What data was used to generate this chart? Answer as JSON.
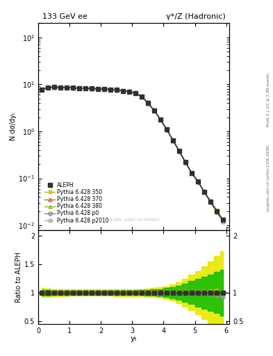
{
  "title_left": "133 GeV ee",
  "title_right": "γ*/Z (Hadronic)",
  "ylabel_main": "N dσ/dyₜ",
  "ylabel_ratio": "Ratio to ALEPH",
  "xlabel": "yₜ",
  "watermark": "ALEPH_2004_S5765862",
  "right_label_top": "Rivet 3.1.10; ≥ 3.3M events",
  "right_label_bot": "mcplots.cern.ch [arXiv:1306.3436]",
  "x": [
    0.1,
    0.3,
    0.5,
    0.7,
    0.9,
    1.1,
    1.3,
    1.5,
    1.7,
    1.9,
    2.1,
    2.3,
    2.5,
    2.7,
    2.9,
    3.1,
    3.3,
    3.5,
    3.7,
    3.9,
    4.1,
    4.3,
    4.5,
    4.7,
    4.9,
    5.1,
    5.3,
    5.5,
    5.7,
    5.9
  ],
  "y_aleph": [
    7.8,
    8.5,
    8.7,
    8.6,
    8.5,
    8.4,
    8.3,
    8.2,
    8.1,
    8.0,
    7.9,
    7.8,
    7.6,
    7.3,
    7.0,
    6.5,
    5.5,
    4.0,
    2.8,
    1.8,
    1.1,
    0.65,
    0.38,
    0.22,
    0.13,
    0.085,
    0.052,
    0.032,
    0.02,
    0.013
  ],
  "y_350": [
    7.9,
    8.6,
    8.8,
    8.7,
    8.6,
    8.5,
    8.4,
    8.3,
    8.2,
    8.1,
    8.0,
    7.9,
    7.7,
    7.4,
    7.1,
    6.6,
    5.6,
    4.1,
    2.85,
    1.82,
    1.12,
    0.66,
    0.39,
    0.225,
    0.132,
    0.087,
    0.053,
    0.033,
    0.021,
    0.013
  ],
  "y_370": [
    7.8,
    8.5,
    8.7,
    8.6,
    8.5,
    8.4,
    8.3,
    8.2,
    8.1,
    8.0,
    7.9,
    7.8,
    7.6,
    7.3,
    7.0,
    6.5,
    5.5,
    4.0,
    2.8,
    1.8,
    1.1,
    0.65,
    0.38,
    0.22,
    0.13,
    0.085,
    0.052,
    0.032,
    0.02,
    0.013
  ],
  "y_380": [
    7.8,
    8.5,
    8.7,
    8.6,
    8.5,
    8.4,
    8.3,
    8.2,
    8.1,
    8.0,
    7.9,
    7.8,
    7.6,
    7.3,
    7.0,
    6.5,
    5.5,
    4.0,
    2.8,
    1.8,
    1.1,
    0.65,
    0.38,
    0.22,
    0.13,
    0.085,
    0.052,
    0.032,
    0.02,
    0.013
  ],
  "y_p0": [
    7.75,
    8.45,
    8.65,
    8.55,
    8.45,
    8.35,
    8.25,
    8.15,
    8.05,
    7.95,
    7.85,
    7.75,
    7.55,
    7.25,
    6.95,
    6.45,
    5.45,
    3.95,
    2.75,
    1.75,
    1.08,
    0.64,
    0.375,
    0.218,
    0.128,
    0.084,
    0.051,
    0.031,
    0.019,
    0.012
  ],
  "y_p2010": [
    7.75,
    8.45,
    8.65,
    8.55,
    8.45,
    8.35,
    8.25,
    8.15,
    8.05,
    7.95,
    7.85,
    7.75,
    7.55,
    7.25,
    6.95,
    6.45,
    5.45,
    3.95,
    2.75,
    1.75,
    1.08,
    0.64,
    0.375,
    0.218,
    0.128,
    0.084,
    0.051,
    0.031,
    0.019,
    0.012
  ],
  "ratio_350": [
    1.01,
    1.01,
    1.01,
    1.01,
    1.01,
    1.01,
    1.01,
    1.01,
    1.01,
    1.01,
    1.01,
    1.01,
    1.01,
    1.01,
    1.01,
    1.01,
    1.02,
    1.02,
    1.02,
    1.01,
    1.02,
    1.015,
    1.02,
    1.02,
    1.015,
    1.024,
    1.019,
    1.031,
    1.05,
    1.0
  ],
  "ratio_370": [
    1.0,
    1.0,
    1.0,
    1.0,
    1.0,
    1.0,
    1.0,
    1.0,
    1.0,
    1.0,
    1.0,
    1.0,
    1.0,
    1.0,
    1.0,
    1.0,
    1.0,
    1.0,
    1.0,
    1.0,
    1.0,
    1.0,
    1.0,
    1.0,
    1.0,
    1.0,
    1.0,
    1.0,
    1.0,
    1.0
  ],
  "ratio_380": [
    1.0,
    1.0,
    1.0,
    1.0,
    1.0,
    1.0,
    1.0,
    1.0,
    1.0,
    1.0,
    1.0,
    1.0,
    1.0,
    1.0,
    1.0,
    1.0,
    1.0,
    1.0,
    1.0,
    1.0,
    1.0,
    1.0,
    1.0,
    1.0,
    1.0,
    1.0,
    1.0,
    1.0,
    1.0,
    1.0
  ],
  "ratio_p0": [
    0.99,
    0.99,
    0.99,
    0.99,
    0.99,
    0.99,
    0.99,
    0.99,
    0.99,
    0.99,
    0.99,
    0.99,
    0.99,
    0.99,
    0.99,
    0.99,
    0.99,
    0.988,
    0.982,
    0.972,
    0.982,
    0.985,
    0.987,
    0.991,
    0.985,
    0.988,
    0.981,
    0.969,
    0.95,
    0.923
  ],
  "ratio_p2010": [
    0.99,
    0.99,
    0.99,
    0.99,
    0.99,
    0.99,
    0.99,
    0.99,
    0.99,
    0.99,
    0.99,
    0.99,
    0.99,
    0.99,
    0.99,
    0.99,
    0.99,
    0.988,
    0.982,
    0.972,
    0.982,
    0.985,
    0.987,
    0.991,
    0.985,
    0.988,
    0.981,
    0.969,
    0.95,
    0.923
  ],
  "band_yellow_lo": [
    0.92,
    0.93,
    0.935,
    0.94,
    0.94,
    0.945,
    0.945,
    0.945,
    0.945,
    0.945,
    0.945,
    0.945,
    0.94,
    0.94,
    0.94,
    0.94,
    0.935,
    0.93,
    0.92,
    0.91,
    0.89,
    0.86,
    0.82,
    0.76,
    0.69,
    0.62,
    0.54,
    0.45,
    0.36,
    0.27
  ],
  "band_yellow_hi": [
    1.08,
    1.07,
    1.065,
    1.06,
    1.06,
    1.055,
    1.055,
    1.055,
    1.055,
    1.055,
    1.055,
    1.055,
    1.06,
    1.06,
    1.06,
    1.06,
    1.065,
    1.07,
    1.08,
    1.09,
    1.11,
    1.14,
    1.18,
    1.24,
    1.31,
    1.38,
    1.46,
    1.55,
    1.64,
    1.73
  ],
  "band_green_lo": [
    0.95,
    0.955,
    0.96,
    0.96,
    0.96,
    0.96,
    0.96,
    0.96,
    0.96,
    0.96,
    0.96,
    0.96,
    0.96,
    0.96,
    0.96,
    0.96,
    0.956,
    0.952,
    0.945,
    0.935,
    0.92,
    0.9,
    0.875,
    0.84,
    0.8,
    0.76,
    0.72,
    0.68,
    0.64,
    0.6
  ],
  "band_green_hi": [
    1.05,
    1.045,
    1.04,
    1.04,
    1.04,
    1.04,
    1.04,
    1.04,
    1.04,
    1.04,
    1.04,
    1.04,
    1.04,
    1.04,
    1.04,
    1.04,
    1.044,
    1.048,
    1.055,
    1.065,
    1.08,
    1.1,
    1.125,
    1.16,
    1.2,
    1.24,
    1.28,
    1.32,
    1.36,
    1.4
  ],
  "color_350": "#c8b400",
  "color_370": "#e05050",
  "color_380": "#70c030",
  "color_p0": "#808080",
  "color_p2010": "#a0a0a0",
  "color_aleph": "#303030",
  "color_yellow": "#e8e800",
  "color_green": "#00b800",
  "ylim_main": [
    0.008,
    200
  ],
  "xlim": [
    0.0,
    6.1
  ],
  "ylim_ratio": [
    0.45,
    2.1
  ]
}
